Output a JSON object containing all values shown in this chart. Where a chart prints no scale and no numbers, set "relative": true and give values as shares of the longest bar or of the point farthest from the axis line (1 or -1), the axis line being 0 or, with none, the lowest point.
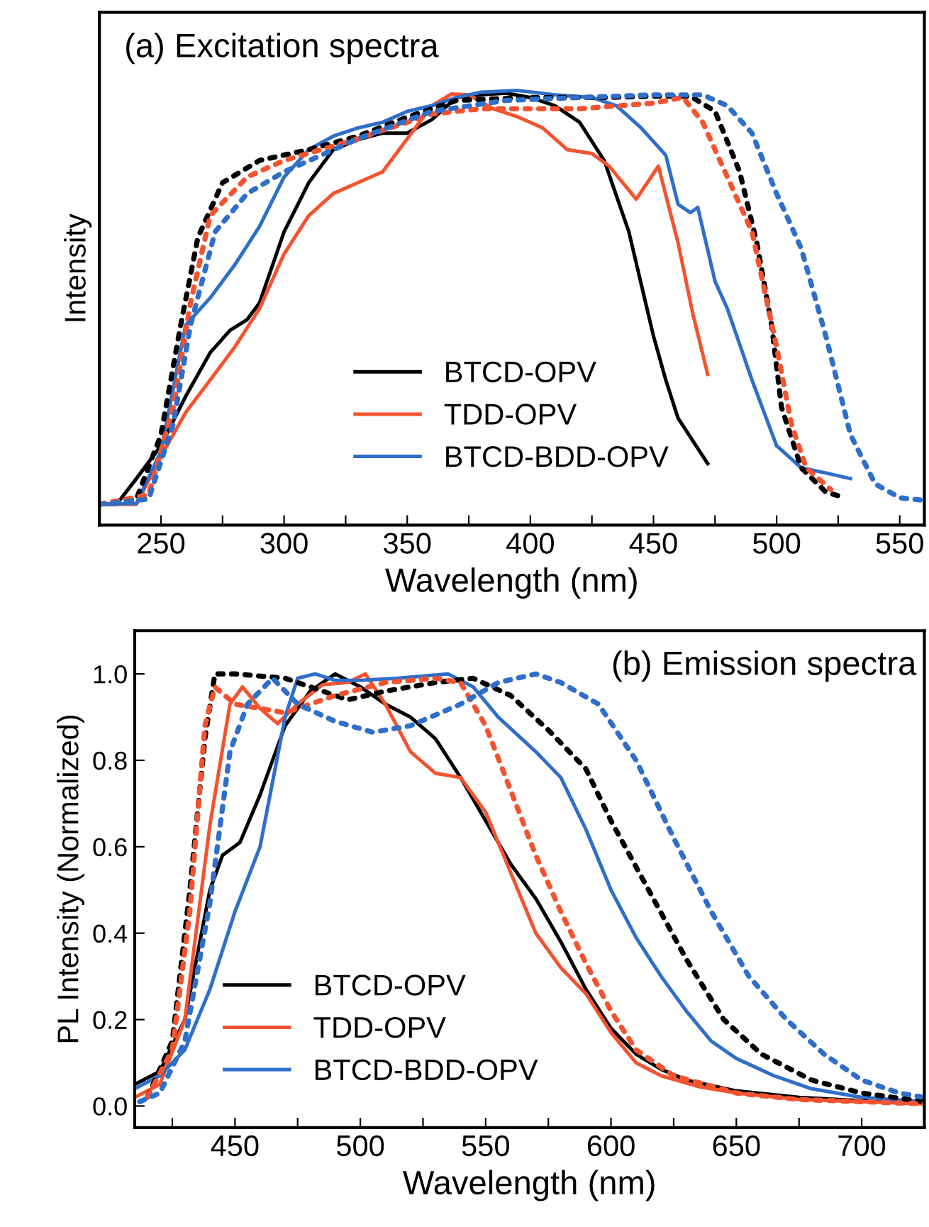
{
  "chart_data": [
    {
      "type": "line",
      "title": "(a) Excitation spectra",
      "xlabel": "Wavelength (nm)",
      "ylabel": "Intensity",
      "relative": true,
      "legend": "bottom",
      "tick_labels": "x",
      "grid": false,
      "xlim": [
        225,
        560
      ],
      "xticks": [
        250,
        {
          "value": 275,
          "label": null
        },
        300,
        {
          "value": 325,
          "label": null
        },
        350,
        {
          "value": 375,
          "label": null
        },
        400,
        {
          "value": 425,
          "label": null
        },
        450,
        {
          "value": 475,
          "label": null
        },
        500,
        {
          "value": 525,
          "label": null
        },
        550
      ],
      "series": [
        {
          "name": "BTCD-OPV",
          "color": "#000000",
          "line_style": "solid",
          "x": [
            225,
            232,
            240,
            250,
            260,
            270,
            278,
            285,
            290,
            300,
            310,
            320,
            330,
            340,
            350,
            360,
            370,
            380,
            390,
            400,
            410,
            420,
            430,
            440,
            450,
            455,
            460,
            472
          ],
          "values": [
            0.048,
            0.048,
            0.107,
            0.183,
            0.296,
            0.397,
            0.448,
            0.473,
            0.511,
            0.675,
            0.788,
            0.864,
            0.887,
            0.902,
            0.902,
            0.933,
            0.984,
            0.99,
            0.994,
            0.984,
            0.965,
            0.927,
            0.839,
            0.675,
            0.435,
            0.334,
            0.246,
            0.142
          ]
        },
        {
          "name": "TDD-OPV",
          "color": "#f4532f",
          "line_style": "solid",
          "x": [
            225,
            240,
            250,
            260,
            270,
            280,
            290,
            300,
            310,
            320,
            330,
            340,
            350,
            360,
            368,
            375,
            385,
            395,
            405,
            415,
            425,
            432,
            443,
            452,
            460,
            466,
            472
          ],
          "values": [
            0.048,
            0.048,
            0.158,
            0.259,
            0.334,
            0.41,
            0.498,
            0.624,
            0.712,
            0.763,
            0.788,
            0.813,
            0.889,
            0.965,
            0.992,
            0.99,
            0.958,
            0.939,
            0.914,
            0.864,
            0.855,
            0.826,
            0.75,
            0.826,
            0.649,
            0.486,
            0.347
          ]
        },
        {
          "name": "BTCD-BDD-OPV",
          "color": "#2f6ec9",
          "line_style": "solid",
          "x": [
            225,
            240,
            250,
            260,
            270,
            280,
            290,
            300,
            310,
            320,
            330,
            340,
            350,
            360,
            370,
            380,
            395,
            410,
            425,
            435,
            445,
            455,
            460,
            465,
            468,
            475,
            480,
            490,
            500,
            510,
            520,
            530
          ],
          "values": [
            0.048,
            0.05,
            0.17,
            0.46,
            0.523,
            0.599,
            0.687,
            0.801,
            0.864,
            0.895,
            0.914,
            0.927,
            0.952,
            0.965,
            0.984,
            0.996,
            1.0,
            0.99,
            0.984,
            0.965,
            0.914,
            0.851,
            0.738,
            0.719,
            0.731,
            0.561,
            0.498,
            0.334,
            0.183,
            0.132,
            0.12,
            0.107
          ]
        },
        {
          "color": "#000000",
          "line_style": "dotted",
          "x": [
            225,
            240,
            250,
            258,
            265,
            275,
            290,
            310,
            330,
            350,
            370,
            400,
            430,
            450,
            465,
            475,
            485,
            492,
            498,
            502,
            510,
            520,
            528
          ],
          "values": [
            0.048,
            0.06,
            0.208,
            0.46,
            0.662,
            0.788,
            0.839,
            0.864,
            0.895,
            0.939,
            0.977,
            0.984,
            0.984,
            0.987,
            0.987,
            0.952,
            0.813,
            0.649,
            0.46,
            0.271,
            0.132,
            0.076,
            0.063
          ]
        },
        {
          "color": "#f4532f",
          "line_style": "dotted",
          "x": [
            225,
            245,
            255,
            262,
            270,
            285,
            300,
            330,
            360,
            380,
            420,
            450,
            462,
            470,
            480,
            490,
            500,
            506,
            512,
            522
          ],
          "values": [
            0.048,
            0.07,
            0.271,
            0.511,
            0.712,
            0.801,
            0.839,
            0.889,
            0.946,
            0.958,
            0.958,
            0.971,
            0.984,
            0.927,
            0.801,
            0.675,
            0.41,
            0.233,
            0.132,
            0.082
          ]
        },
        {
          "color": "#2f6ec9",
          "line_style": "dotted",
          "x": [
            225,
            245,
            255,
            262,
            272,
            285,
            300,
            330,
            360,
            390,
            420,
            450,
            470,
            480,
            490,
            500,
            510,
            520,
            530,
            540,
            550,
            560
          ],
          "values": [
            0.048,
            0.06,
            0.233,
            0.46,
            0.675,
            0.763,
            0.813,
            0.889,
            0.952,
            0.977,
            0.984,
            0.99,
            0.99,
            0.965,
            0.902,
            0.763,
            0.637,
            0.435,
            0.208,
            0.095,
            0.063,
            0.057
          ]
        }
      ]
    },
    {
      "type": "line",
      "title": "(b) Emission spectra",
      "xlabel": "Wavelength (nm)",
      "ylabel": "PL Intensity (Normalized)",
      "legend": "bottom left",
      "grid": false,
      "xlim": [
        410,
        725
      ],
      "xticks": [
        {
          "value": 425,
          "label": null
        },
        450,
        {
          "value": 475,
          "label": null
        },
        500,
        {
          "value": 525,
          "label": null
        },
        550,
        {
          "value": 575,
          "label": null
        },
        600,
        {
          "value": 625,
          "label": null
        },
        650,
        {
          "value": 675,
          "label": null
        },
        700,
        {
          "value": 725,
          "label": null
        }
      ],
      "ylim": [
        -0.05,
        1.1
      ],
      "yticks": [
        {
          "value": 0,
          "label": "0.0"
        },
        0.2,
        0.4,
        0.6,
        0.8,
        {
          "value": 1,
          "label": "1.0"
        }
      ],
      "series": [
        {
          "name": "BTCD-OPV",
          "color": "#000000",
          "line_style": "solid",
          "x": [
            410,
            420,
            430,
            440,
            445,
            452,
            460,
            470,
            480,
            490,
            500,
            510,
            520,
            530,
            540,
            550,
            560,
            570,
            580,
            590,
            600,
            610,
            620,
            630,
            650,
            675,
            700,
            725
          ],
          "values": [
            0.05,
            0.08,
            0.2,
            0.5,
            0.58,
            0.61,
            0.72,
            0.88,
            0.96,
            1.0,
            0.97,
            0.93,
            0.9,
            0.85,
            0.76,
            0.66,
            0.56,
            0.48,
            0.38,
            0.27,
            0.18,
            0.12,
            0.085,
            0.06,
            0.035,
            0.02,
            0.012,
            0.008
          ]
        },
        {
          "name": "TDD-OPV",
          "color": "#f4532f",
          "line_style": "solid",
          "x": [
            410,
            420,
            430,
            440,
            448,
            453,
            460,
            467,
            475,
            485,
            495,
            502,
            510,
            520,
            530,
            540,
            550,
            560,
            570,
            580,
            590,
            600,
            610,
            620,
            635,
            650,
            675,
            700,
            725
          ],
          "values": [
            0.02,
            0.05,
            0.2,
            0.65,
            0.93,
            0.97,
            0.92,
            0.885,
            0.93,
            0.975,
            0.98,
            1.0,
            0.93,
            0.82,
            0.77,
            0.76,
            0.68,
            0.54,
            0.4,
            0.32,
            0.26,
            0.17,
            0.1,
            0.07,
            0.045,
            0.03,
            0.015,
            0.01,
            0.005
          ]
        },
        {
          "name": "BTCD-BDD-OPV",
          "color": "#2f6ec9",
          "line_style": "solid",
          "x": [
            410,
            420,
            430,
            440,
            450,
            460,
            465,
            470,
            475,
            482,
            490,
            500,
            515,
            535,
            545,
            555,
            570,
            580,
            590,
            600,
            610,
            620,
            630,
            640,
            650,
            665,
            680,
            700,
            725
          ],
          "values": [
            0.04,
            0.07,
            0.13,
            0.27,
            0.45,
            0.6,
            0.75,
            0.9,
            0.99,
            1.0,
            0.985,
            0.985,
            0.99,
            1.0,
            0.97,
            0.9,
            0.82,
            0.76,
            0.64,
            0.5,
            0.39,
            0.3,
            0.22,
            0.15,
            0.11,
            0.07,
            0.04,
            0.02,
            0.01
          ]
        },
        {
          "color": "#000000",
          "line_style": "dotted",
          "x": [
            415,
            425,
            432,
            438,
            442,
            450,
            470,
            480,
            495,
            510,
            530,
            545,
            560,
            575,
            590,
            600,
            615,
            630,
            645,
            660,
            680,
            700,
            725
          ],
          "values": [
            0.02,
            0.15,
            0.5,
            0.85,
            1.0,
            1.0,
            0.99,
            0.97,
            0.94,
            0.96,
            0.98,
            0.99,
            0.95,
            0.87,
            0.78,
            0.66,
            0.5,
            0.34,
            0.2,
            0.12,
            0.06,
            0.03,
            0.01
          ]
        },
        {
          "color": "#f4532f",
          "line_style": "dotted",
          "x": [
            415,
            425,
            432,
            438,
            442,
            450,
            470,
            490,
            510,
            530,
            540,
            550,
            560,
            570,
            580,
            590,
            600,
            610,
            625,
            650,
            675,
            700,
            725
          ],
          "values": [
            0.02,
            0.13,
            0.45,
            0.88,
            0.97,
            0.93,
            0.91,
            0.95,
            0.98,
            0.99,
            0.98,
            0.88,
            0.73,
            0.58,
            0.45,
            0.33,
            0.22,
            0.13,
            0.07,
            0.03,
            0.015,
            0.01,
            0.005
          ]
        },
        {
          "color": "#2f6ec9",
          "line_style": "dotted",
          "x": [
            412,
            420,
            430,
            440,
            448,
            455,
            465,
            475,
            490,
            505,
            520,
            540,
            555,
            570,
            580,
            595,
            610,
            625,
            640,
            655,
            670,
            685,
            700,
            715,
            725
          ],
          "values": [
            0.01,
            0.03,
            0.15,
            0.47,
            0.82,
            0.93,
            0.99,
            0.93,
            0.89,
            0.865,
            0.88,
            0.93,
            0.98,
            1.0,
            0.98,
            0.93,
            0.8,
            0.62,
            0.45,
            0.3,
            0.2,
            0.12,
            0.06,
            0.03,
            0.02
          ]
        }
      ]
    }
  ]
}
